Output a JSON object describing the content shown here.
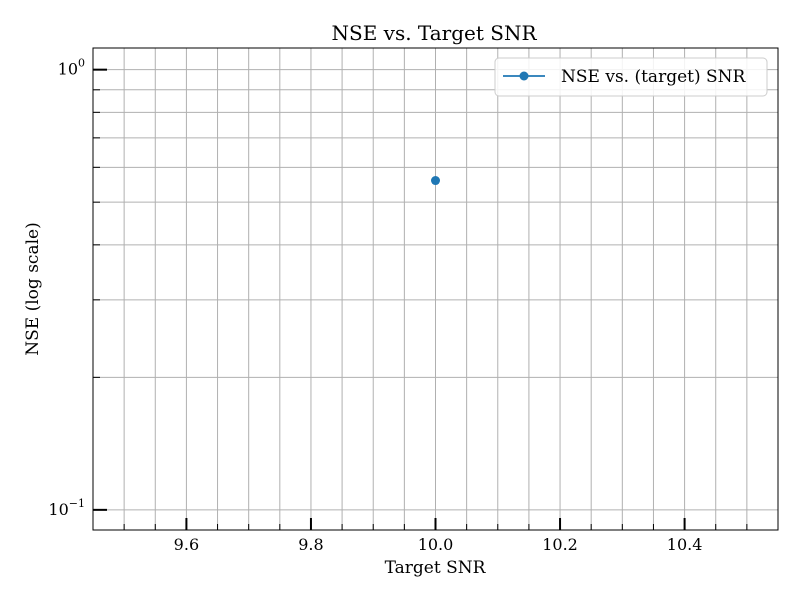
{
  "chart_data": {
    "type": "scatter",
    "title": "NSE vs. Target SNR",
    "xlabel": "Target SNR",
    "ylabel": "NSE (log scale)",
    "x_scale": "linear",
    "y_scale": "log",
    "xlim": [
      9.45,
      10.55
    ],
    "ylim": [
      0.09,
      1.12
    ],
    "x_major_ticks": [
      9.6,
      9.8,
      10.0,
      10.2,
      10.4
    ],
    "x_minor_ticks": [
      9.5,
      9.55,
      9.65,
      9.7,
      9.75,
      9.85,
      9.9,
      9.95,
      10.05,
      10.1,
      10.15,
      10.25,
      10.3,
      10.35,
      10.45,
      10.5
    ],
    "y_major_ticks": [
      {
        "value": 0.1,
        "base": "10",
        "exponent": "−1"
      },
      {
        "value": 1.0,
        "base": "10",
        "exponent": "0"
      }
    ],
    "y_minor_ticks": [
      0.2,
      0.3,
      0.4,
      0.5,
      0.6,
      0.7,
      0.8,
      0.9
    ],
    "grid": true,
    "legend": {
      "position": "top-right"
    },
    "series": [
      {
        "name": "NSE vs. (target) SNR",
        "color": "#1f77b4",
        "marker": "circle",
        "points": [
          {
            "x": 10.0,
            "y": 0.56
          }
        ]
      }
    ]
  }
}
